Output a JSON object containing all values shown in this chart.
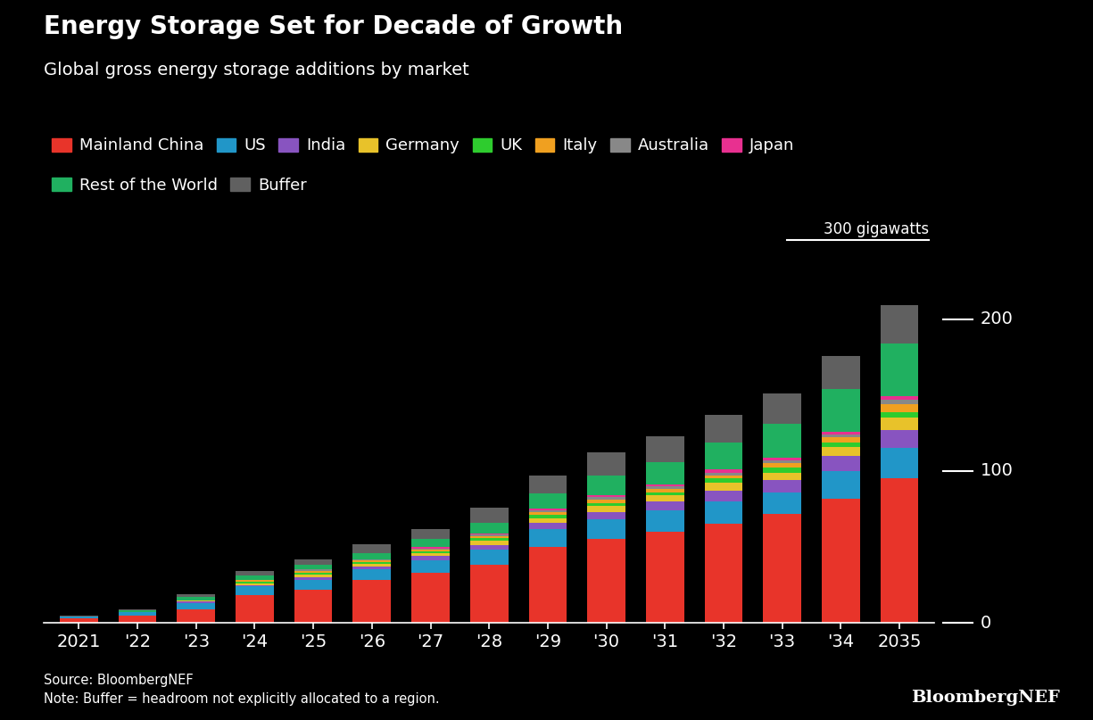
{
  "title": "Energy Storage Set for Decade of Growth",
  "subtitle": "Global gross energy storage additions by market",
  "source_note": "Source: BloombergNEF\nNote: Buffer = headroom not explicitly allocated to a region.",
  "brand": "BloombergNEF",
  "years": [
    "2021",
    "'22",
    "'23",
    "'24",
    "'25",
    "'26",
    "'27",
    "'28",
    "'29",
    "'30",
    "'31",
    "'32",
    "'33",
    "'34",
    "2035"
  ],
  "series": [
    {
      "label": "Mainland China",
      "color": "#e8342a",
      "values": [
        3,
        5,
        9,
        18,
        22,
        28,
        33,
        38,
        50,
        55,
        60,
        65,
        72,
        82,
        95
      ]
    },
    {
      "label": "US",
      "color": "#2196c8",
      "values": [
        1,
        2,
        4,
        6,
        6,
        7,
        8,
        10,
        12,
        13,
        14,
        15,
        14,
        18,
        20
      ]
    },
    {
      "label": "India",
      "color": "#8854c0",
      "values": [
        0,
        0,
        1,
        1,
        2,
        2,
        3,
        3,
        4,
        5,
        6,
        7,
        8,
        10,
        12
      ]
    },
    {
      "label": "Germany",
      "color": "#e8c22a",
      "values": [
        0,
        0,
        1,
        1,
        2,
        2,
        2,
        3,
        3,
        4,
        4,
        5,
        5,
        6,
        8
      ]
    },
    {
      "label": "UK",
      "color": "#2ecc2e",
      "values": [
        0,
        0,
        0,
        1,
        1,
        1,
        1,
        2,
        2,
        2,
        2,
        3,
        3,
        3,
        4
      ]
    },
    {
      "label": "Italy",
      "color": "#f0a020",
      "values": [
        0,
        0,
        0,
        1,
        1,
        1,
        1,
        1,
        2,
        2,
        2,
        2,
        3,
        3,
        5
      ]
    },
    {
      "label": "Australia",
      "color": "#888888",
      "values": [
        0,
        0,
        0,
        0,
        1,
        1,
        1,
        1,
        1,
        2,
        2,
        2,
        2,
        2,
        3
      ]
    },
    {
      "label": "Japan",
      "color": "#e83090",
      "values": [
        0,
        0,
        0,
        0,
        0,
        0,
        1,
        1,
        1,
        1,
        1,
        2,
        2,
        2,
        2
      ]
    },
    {
      "label": "Rest of the World",
      "color": "#20b060",
      "values": [
        0,
        1,
        2,
        3,
        3,
        4,
        5,
        7,
        10,
        13,
        15,
        18,
        22,
        28,
        35
      ]
    },
    {
      "label": "Buffer",
      "color": "#606060",
      "values": [
        1,
        1,
        2,
        3,
        4,
        6,
        7,
        10,
        12,
        15,
        17,
        18,
        20,
        22,
        25
      ]
    }
  ],
  "ylim": [
    0,
    230
  ],
  "yticks": [
    0,
    100,
    200
  ],
  "ylabel_annotation": "300 gigawatts",
  "background_color": "#000000",
  "text_color": "#ffffff",
  "title_fontsize": 20,
  "subtitle_fontsize": 14,
  "tick_fontsize": 14,
  "legend_fontsize": 13
}
